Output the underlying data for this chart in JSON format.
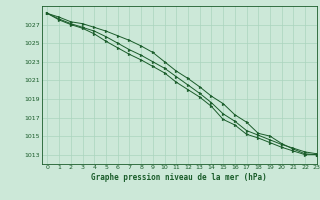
{
  "title": "Graphe pression niveau de la mer (hPa)",
  "bg_color": "#cce8d8",
  "grid_color": "#aad4be",
  "line_color": "#1a5c2a",
  "marker_color": "#1a5c2a",
  "xlim": [
    -0.5,
    23
  ],
  "ylim": [
    1012.0,
    1029.0
  ],
  "yticks": [
    1013,
    1015,
    1017,
    1019,
    1021,
    1023,
    1025,
    1027
  ],
  "xticks": [
    0,
    1,
    2,
    3,
    4,
    5,
    6,
    7,
    8,
    9,
    10,
    11,
    12,
    13,
    14,
    15,
    16,
    17,
    18,
    19,
    20,
    21,
    22,
    23
  ],
  "series": [
    [
      1028.2,
      1027.8,
      1027.3,
      1027.1,
      1026.7,
      1026.3,
      1025.8,
      1025.3,
      1024.7,
      1024.0,
      1023.0,
      1022.0,
      1021.2,
      1020.3,
      1019.3,
      1018.5,
      1017.3,
      1016.5,
      1015.3,
      1015.0,
      1014.2,
      1013.6,
      1013.1,
      1013.0
    ],
    [
      1028.2,
      1027.6,
      1027.1,
      1026.7,
      1026.3,
      1025.7,
      1025.0,
      1024.3,
      1023.7,
      1023.0,
      1022.3,
      1021.4,
      1020.5,
      1019.6,
      1018.6,
      1017.4,
      1016.6,
      1015.6,
      1015.1,
      1014.6,
      1014.1,
      1013.7,
      1013.3,
      1013.1
    ],
    [
      1028.2,
      1027.5,
      1027.0,
      1026.6,
      1026.0,
      1025.2,
      1024.5,
      1023.8,
      1023.2,
      1022.5,
      1021.8,
      1020.8,
      1020.0,
      1019.2,
      1018.2,
      1016.8,
      1016.2,
      1015.2,
      1014.8,
      1014.3,
      1013.8,
      1013.4,
      1013.0,
      1013.0
    ]
  ]
}
